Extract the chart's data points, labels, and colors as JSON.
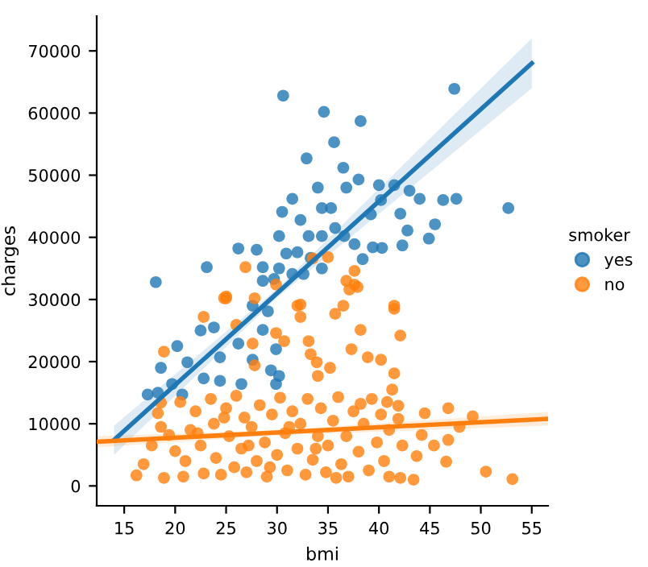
{
  "chart_data": {
    "type": "scatter",
    "xlabel": "bmi",
    "ylabel": "charges",
    "legend_title": "smoker",
    "legend": "right",
    "grid": false,
    "xlim": [
      12.3,
      56.6
    ],
    "ylim": [
      -3200,
      75600
    ],
    "xticks": [
      15,
      20,
      25,
      30,
      35,
      40,
      45,
      50,
      55
    ],
    "yticks": [
      0,
      10000,
      20000,
      30000,
      40000,
      50000,
      60000,
      70000
    ],
    "series": [
      {
        "name": "yes",
        "color": "#1f77b4",
        "marker": "circle",
        "x": [
          18.1,
          23.1,
          26.2,
          28.0,
          28.6,
          30.6,
          34.6,
          38.2,
          35.6,
          32.9,
          36.5,
          47.4,
          52.7,
          47.6,
          46.3,
          45.5,
          44.9,
          44.0,
          42.8,
          42.3,
          42.1,
          43.0,
          41.5,
          40.0,
          40.2,
          40.3,
          39.4,
          38.4,
          39.2,
          38.0,
          36.8,
          34.0,
          34.4,
          35.3,
          32.3,
          31.5,
          30.5,
          30.2,
          30.9,
          30.2,
          32.0,
          33.1,
          34.4,
          35.7,
          36.6,
          37.6,
          33.3,
          34.4,
          32.6,
          31.5,
          29.7,
          28.6,
          20.2,
          21.2,
          18.6,
          17.3,
          18.3,
          19.7,
          20.7,
          22.8,
          23.8,
          22.5,
          24.4,
          26.2,
          24.4,
          27.6,
          28.6,
          27.6,
          29.9,
          29.4,
          26.5,
          29.9,
          30.2,
          29.1
        ],
        "values": [
          32800,
          35200,
          38200,
          38000,
          35200,
          62800,
          60200,
          58700,
          55300,
          52700,
          51200,
          63900,
          44700,
          46200,
          46000,
          42100,
          39800,
          46200,
          41100,
          38700,
          43800,
          47500,
          48400,
          48400,
          46000,
          38300,
          38400,
          36500,
          43700,
          49300,
          48000,
          48000,
          44700,
          44700,
          42800,
          46200,
          44100,
          40200,
          37400,
          35000,
          37600,
          40200,
          40200,
          41500,
          40200,
          38900,
          36700,
          35000,
          34100,
          34100,
          33300,
          33000,
          22500,
          19900,
          19000,
          14700,
          15000,
          16400,
          14700,
          17300,
          25500,
          25000,
          20700,
          22900,
          16900,
          20300,
          25100,
          29000,
          22000,
          18600,
          16400,
          16400,
          17700,
          28100
        ]
      },
      {
        "name": "no",
        "color": "#ff7f0e",
        "marker": "circle",
        "x": [
          26.9,
          24.8,
          25.0,
          27.8,
          29.9,
          32.3,
          33.5,
          35.0,
          37.6,
          36.8,
          37.9,
          41.5,
          18.9,
          22.8,
          25.0,
          26.0,
          27.6,
          27.8,
          29.9,
          30.7,
          32.0,
          32.3,
          33.1,
          33.9,
          35.7,
          36.5,
          37.6,
          37.1,
          38.2,
          37.3,
          38.9,
          40.2,
          35.2,
          41.5,
          42.1,
          41.5,
          33.3,
          34.0,
          50.5,
          53.1,
          49.2,
          47.9,
          46.8,
          46.8,
          46.6,
          45.4,
          44.5,
          44.2,
          43.7,
          43.4,
          42.1,
          41.9,
          42.3,
          41.3,
          41.9,
          16.2,
          16.9,
          17.7,
          18.3,
          18.6,
          18.6,
          19.4,
          18.9,
          20.0,
          20.5,
          21.5,
          21.0,
          20.8,
          22.0,
          22.5,
          22.8,
          23.5,
          23.8,
          24.0,
          24.5,
          25.0,
          25.3,
          25.8,
          26.0,
          26.5,
          26.8,
          27.0,
          27.5,
          28.0,
          28.3,
          28.8,
          29.0,
          29.5,
          30.0,
          30.3,
          30.8,
          31.0,
          31.5,
          32.0,
          32.3,
          32.8,
          33.0,
          33.5,
          34.0,
          34.3,
          34.8,
          35.0,
          35.5,
          36.0,
          36.3,
          36.8,
          37.0,
          37.5,
          38.0,
          38.5,
          39.0,
          39.3,
          39.8,
          40.2,
          40.5,
          41.0,
          41.0,
          40.8,
          22.2,
          27.2,
          33.8,
          31.2,
          24.8,
          29.3,
          35.8,
          38.2
        ],
        "values": [
          35200,
          30200,
          30500,
          30200,
          32400,
          29200,
          36600,
          36800,
          34600,
          33000,
          32000,
          29000,
          21600,
          27200,
          30200,
          25900,
          22900,
          19400,
          24600,
          23300,
          29000,
          27200,
          23300,
          19900,
          27700,
          29000,
          32400,
          31600,
          25100,
          22000,
          20700,
          20300,
          19000,
          28500,
          24200,
          18100,
          21200,
          17700,
          2300,
          1100,
          11200,
          9500,
          12500,
          7400,
          3900,
          6500,
          11700,
          8200,
          4800,
          1000,
          1300,
          10800,
          6500,
          15500,
          12900,
          1700,
          3500,
          6500,
          11700,
          13400,
          9500,
          8200,
          1300,
          5600,
          13500,
          9000,
          4000,
          1500,
          12000,
          6500,
          2000,
          14000,
          10000,
          4500,
          1800,
          12500,
          8000,
          3000,
          14500,
          6000,
          11000,
          2200,
          9500,
          4000,
          13000,
          7000,
          1500,
          11500,
          5000,
          14200,
          8500,
          2500,
          12000,
          6000,
          10000,
          1800,
          14000,
          4200,
          8000,
          12500,
          2200,
          6500,
          10500,
          14300,
          3500,
          8000,
          1500,
          12000,
          5500,
          10000,
          2500,
          14000,
          7000,
          11500,
          4000,
          1500,
          9000,
          13500,
          8500,
          6500,
          6000,
          9500,
          11000,
          3000,
          1300,
          13200
        ]
      },
      {
        "color": "#1f77b4",
        "type": "line",
        "x": [
          14.0,
          30.0,
          55.0
        ],
        "values": [
          7400,
          31000,
          68000
        ],
        "lower": [
          5000,
          30300,
          64000
        ],
        "upper": [
          9700,
          31700,
          72000
        ]
      },
      {
        "color": "#ff7f0e",
        "type": "line",
        "x": [
          12.3,
          30.0,
          56.6
        ],
        "values": [
          7100,
          8600,
          10800
        ],
        "lower": [
          6200,
          8150,
          9700
        ],
        "upper": [
          8000,
          8950,
          11900
        ]
      }
    ]
  }
}
